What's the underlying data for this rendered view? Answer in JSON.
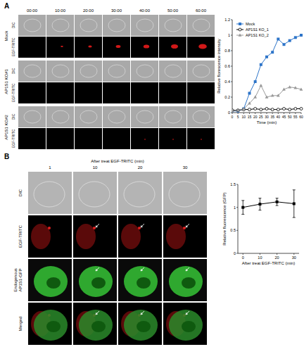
{
  "figure": {
    "panels": [
      {
        "label": "A",
        "times": [
          "00:00",
          "10:00",
          "20:00",
          "30:00",
          "40:00",
          "50:00",
          "60:00"
        ],
        "rows": [
          {
            "group": "Mock",
            "channels": [
              "DIC",
              "EGF-TRITC"
            ]
          },
          {
            "group": "AP1S1 KO#1",
            "channels": [
              "DIC",
              "EGF-TRITC"
            ]
          },
          {
            "group": "AP1S1 KO#2",
            "channels": [
              "DIC",
              "EGF-TRITC"
            ]
          }
        ]
      },
      {
        "label": "B",
        "header": "After treat EGF-TRITC (min)",
        "times": [
          "1",
          "10",
          "20",
          "30"
        ],
        "rows": [
          [
            "DIC"
          ],
          [
            "EGF-TRITC"
          ],
          [
            "Endogenous",
            "AP1S1-GFP"
          ],
          [
            "Merged"
          ]
        ]
      }
    ]
  },
  "chart_data": [
    {
      "type": "line",
      "x_label": "Time (min)",
      "y_label": "Relative florescence intensity",
      "x": [
        0,
        5,
        10,
        15,
        20,
        25,
        30,
        35,
        40,
        45,
        50,
        55,
        60
      ],
      "series": [
        {
          "name": "Mock",
          "color": "#2e75c9",
          "marker": "square",
          "values": [
            0.02,
            0.02,
            0.05,
            0.25,
            0.4,
            0.62,
            0.72,
            0.78,
            0.95,
            0.88,
            0.93,
            0.97,
            1.0
          ]
        },
        {
          "name": "AP1S1 KO_1",
          "color": "#000000",
          "marker": "circle-open",
          "values": [
            0.03,
            0.03,
            0.04,
            0.04,
            0.05,
            0.04,
            0.05,
            0.04,
            0.04,
            0.05,
            0.04,
            0.05,
            0.05
          ]
        },
        {
          "name": "AP1S1 KO_2",
          "color": "#999999",
          "marker": "triangle",
          "values": [
            0.02,
            0.03,
            0.05,
            0.12,
            0.2,
            0.35,
            0.2,
            0.22,
            0.22,
            0.3,
            0.33,
            0.32,
            0.3
          ]
        }
      ],
      "xlim": [
        0,
        60
      ],
      "xticks": [
        0,
        5,
        10,
        15,
        20,
        25,
        30,
        35,
        40,
        45,
        50,
        55,
        60
      ],
      "ylim": [
        0,
        1.2
      ],
      "yticks": [
        0,
        0.2,
        0.4,
        0.6,
        0.8,
        1,
        1.2
      ],
      "legend": "top-left"
    },
    {
      "type": "line",
      "x_label": "After treat EGF-TRITC (min)",
      "y_label": "Relative fluorescence (GFP)",
      "x": [
        0,
        10,
        20,
        30
      ],
      "values": [
        1.0,
        1.07,
        1.12,
        1.08
      ],
      "errors": [
        0.15,
        0.13,
        0.08,
        0.3
      ],
      "color": "#000000",
      "marker": "square",
      "xlim": [
        -3,
        33
      ],
      "xticks": [
        0,
        10,
        20,
        30
      ],
      "ylim": [
        0,
        1.5
      ],
      "yticks": [
        0,
        0.5,
        1,
        1.5
      ]
    }
  ]
}
